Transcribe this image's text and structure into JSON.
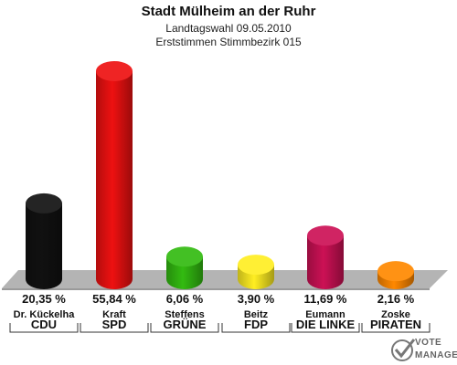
{
  "header": {
    "title": "Stadt Mülheim an der Ruhr",
    "subtitle1": "Landtagswahl 09.05.2010",
    "subtitle2": "Erststimmen Stimmbezirk 015"
  },
  "chart_data": {
    "type": "bar",
    "title": "Stadt Mülheim an der Ruhr",
    "subtitle": "Landtagswahl 09.05.2010 — Erststimmen Stimmbezirk 015",
    "categories": [
      "CDU",
      "SPD",
      "GRÜNE",
      "FDP",
      "DIE LINKE",
      "PIRATEN"
    ],
    "candidates": [
      "Dr. Kückelha",
      "Kraft",
      "Steffens",
      "Beitz",
      "Eumann",
      "Zoske"
    ],
    "values": [
      20.35,
      55.84,
      6.06,
      3.9,
      11.69,
      2.16
    ],
    "labels": [
      "20,35 %",
      "55,84 %",
      "6,06 %",
      "3,90 %",
      "11,69 %",
      "2,16 %"
    ],
    "colors": [
      "#111111",
      "#ee1111",
      "#33bb11",
      "#ffee22",
      "#cc1155",
      "#ff8800"
    ],
    "ylim": [
      0,
      60
    ],
    "grid": false,
    "legend": "none"
  },
  "logo": {
    "line1": "VOTE",
    "line2": "MANAGER"
  }
}
